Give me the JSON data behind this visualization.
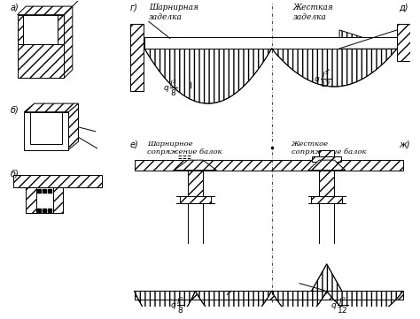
{
  "bg_color": "#ffffff",
  "line_color": "#000000",
  "labels": {
    "a": "а)",
    "b1": "б)",
    "b2": "б)",
    "g": "г)",
    "d": "д)",
    "e": "е)",
    "zh": "ж)"
  },
  "text_sharnir_zadelka": "Шарнирная\nзаделка",
  "text_zhestk_zadelka": "Жесткая\nзаделка",
  "text_sharnir_sop": "Шарнирное\nсопряжение балок",
  "text_zhestk_sop": "Жесткое\nсопряжение балок"
}
